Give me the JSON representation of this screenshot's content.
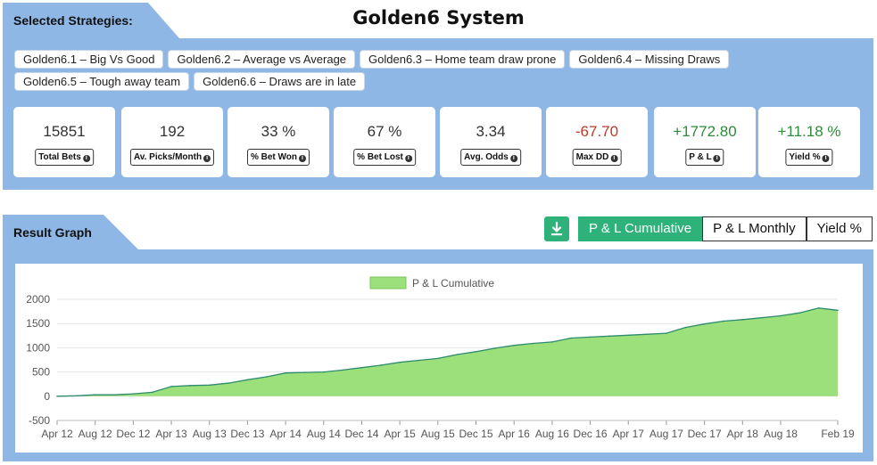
{
  "header": {
    "section_title": "Selected Strategies:",
    "page_title": "Golden6 System"
  },
  "strategies": [
    "Golden6.1 – Big Vs Good",
    "Golden6.2 – Average vs Average",
    "Golden6.3 – Home team draw prone",
    "Golden6.4 – Missing Draws",
    "Golden6.5 – Tough away team",
    "Golden6.6 – Draws are in late"
  ],
  "stats": [
    {
      "value": "15851",
      "label": "Total Bets",
      "color": "#333333"
    },
    {
      "value": "192",
      "label": "Av. Picks/Month",
      "color": "#333333"
    },
    {
      "value": "33 %",
      "label": "% Bet Won",
      "color": "#333333"
    },
    {
      "value": "67 %",
      "label": "% Bet Lost",
      "color": "#333333"
    },
    {
      "value": "3.34",
      "label": "Avg. Odds",
      "color": "#333333"
    },
    {
      "value": "-67.70",
      "label": "Max DD",
      "color": "#c0392b"
    },
    {
      "value": "+1772.80",
      "label": "P & L",
      "color": "#2e8b3a"
    },
    {
      "value": "+11.18 %",
      "label": "Yield %",
      "color": "#2e8b3a"
    }
  ],
  "result": {
    "section_title": "Result Graph",
    "download_icon": "download-icon",
    "toggles": [
      "P & L Cumulative",
      "P & L Monthly",
      "Yield %"
    ],
    "active_toggle": 0
  },
  "colors": {
    "panel": "#8fb7e6",
    "accent_green": "#2fb27a",
    "area_fill": "#9be07a",
    "area_line": "#2e8b6e"
  },
  "chart_data": {
    "type": "area",
    "legend": "P & L Cumulative",
    "legend_position": "top-center",
    "grid": true,
    "ylim": [
      -500,
      2000
    ],
    "yticks": [
      2000,
      1500,
      1000,
      500,
      0,
      -500
    ],
    "xticks": [
      "Apr 12",
      "Aug 12",
      "Dec 12",
      "Apr 13",
      "Aug 13",
      "Dec 13",
      "Apr 14",
      "Aug 14",
      "Dec 14",
      "Apr 15",
      "Aug 15",
      "Dec 15",
      "Apr 16",
      "Aug 16",
      "Dec 16",
      "Apr 17",
      "Aug 17",
      "Dec 17",
      "Apr 18",
      "Aug 18",
      "Feb 19"
    ],
    "series": [
      {
        "name": "P & L Cumulative",
        "points": [
          {
            "x": "Apr 12",
            "y": 0
          },
          {
            "x": "Jun 12",
            "y": 10
          },
          {
            "x": "Aug 12",
            "y": 30
          },
          {
            "x": "Oct 12",
            "y": 30
          },
          {
            "x": "Dec 12",
            "y": 50
          },
          {
            "x": "Feb 13",
            "y": 80
          },
          {
            "x": "Apr 13",
            "y": 200
          },
          {
            "x": "Jun 13",
            "y": 220
          },
          {
            "x": "Aug 13",
            "y": 230
          },
          {
            "x": "Oct 13",
            "y": 270
          },
          {
            "x": "Dec 13",
            "y": 340
          },
          {
            "x": "Feb 14",
            "y": 400
          },
          {
            "x": "Apr 14",
            "y": 480
          },
          {
            "x": "Jun 14",
            "y": 490
          },
          {
            "x": "Aug 14",
            "y": 500
          },
          {
            "x": "Oct 14",
            "y": 540
          },
          {
            "x": "Dec 14",
            "y": 590
          },
          {
            "x": "Feb 15",
            "y": 640
          },
          {
            "x": "Apr 15",
            "y": 700
          },
          {
            "x": "Jun 15",
            "y": 740
          },
          {
            "x": "Aug 15",
            "y": 780
          },
          {
            "x": "Oct 15",
            "y": 860
          },
          {
            "x": "Dec 15",
            "y": 920
          },
          {
            "x": "Feb 16",
            "y": 990
          },
          {
            "x": "Apr 16",
            "y": 1050
          },
          {
            "x": "Jun 16",
            "y": 1090
          },
          {
            "x": "Aug 16",
            "y": 1120
          },
          {
            "x": "Oct 16",
            "y": 1200
          },
          {
            "x": "Dec 16",
            "y": 1220
          },
          {
            "x": "Feb 17",
            "y": 1240
          },
          {
            "x": "Apr 17",
            "y": 1260
          },
          {
            "x": "Jun 17",
            "y": 1280
          },
          {
            "x": "Aug 17",
            "y": 1300
          },
          {
            "x": "Oct 17",
            "y": 1420
          },
          {
            "x": "Dec 17",
            "y": 1490
          },
          {
            "x": "Feb 18",
            "y": 1550
          },
          {
            "x": "Apr 18",
            "y": 1580
          },
          {
            "x": "Jun 18",
            "y": 1620
          },
          {
            "x": "Aug 18",
            "y": 1660
          },
          {
            "x": "Oct 18",
            "y": 1720
          },
          {
            "x": "Dec 18",
            "y": 1820
          },
          {
            "x": "Feb 19",
            "y": 1773
          }
        ]
      }
    ]
  }
}
